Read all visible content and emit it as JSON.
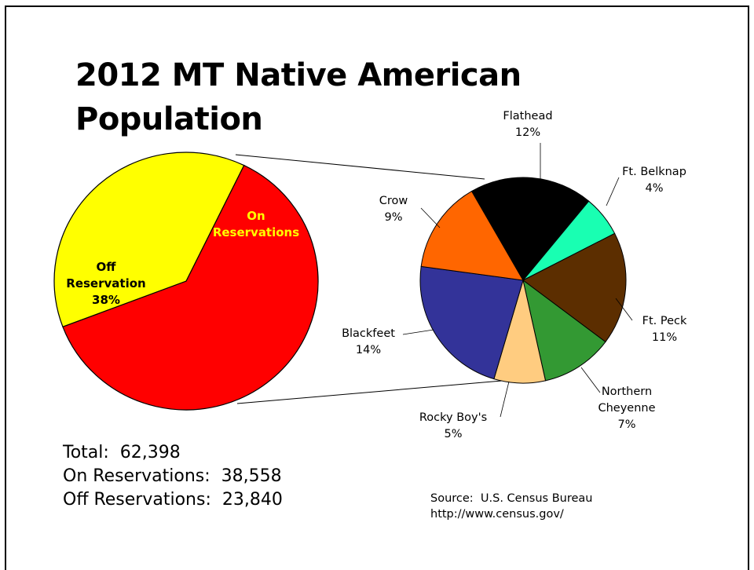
{
  "chart_data": {
    "type": "pie",
    "title": "2012 MT Native American Population",
    "main_pie": {
      "slices": [
        {
          "name": "On Reservations",
          "label_lines": [
            "On",
            "Reservations"
          ],
          "value": 62,
          "color": "#ff0000",
          "text_color": "#ffff00"
        },
        {
          "name": "Off Reservation",
          "label_lines": [
            "Off",
            "Reservation",
            "38%"
          ],
          "value": 38,
          "color": "#ffff00",
          "text_color": "#000000"
        }
      ]
    },
    "detail_pie": {
      "slices": [
        {
          "name": "Flathead",
          "pct_label": "12%",
          "value": 12,
          "color": "#000000"
        },
        {
          "name": "Ft. Belknap",
          "pct_label": "4%",
          "value": 4,
          "color": "#19ffb2"
        },
        {
          "name": "Ft. Peck",
          "pct_label": "11%",
          "value": 11,
          "color": "#5c2e00"
        },
        {
          "name": "Northern Cheyenne",
          "label_lines": [
            "Northern",
            "Cheyenne"
          ],
          "pct_label": "7%",
          "value": 7,
          "color": "#339933"
        },
        {
          "name": "Rocky Boy's",
          "pct_label": "5%",
          "value": 5,
          "color": "#ffcc80"
        },
        {
          "name": "Blackfeet",
          "pct_label": "14%",
          "value": 14,
          "color": "#333399"
        },
        {
          "name": "Crow",
          "pct_label": "9%",
          "value": 9,
          "color": "#ff6600"
        }
      ]
    }
  },
  "stats": {
    "total": "Total:  62,398",
    "on": "On Reservations:  38,558",
    "off": "Off Reservations:  23,840"
  },
  "source": {
    "line1": "Source:  U.S. Census Bureau",
    "line2": "http://www.census.gov/"
  }
}
